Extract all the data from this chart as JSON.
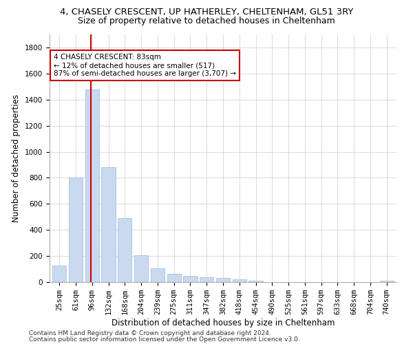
{
  "title_line1": "4, CHASELY CRESCENT, UP HATHERLEY, CHELTENHAM, GL51 3RY",
  "title_line2": "Size of property relative to detached houses in Cheltenham",
  "xlabel": "Distribution of detached houses by size in Cheltenham",
  "ylabel": "Number of detached properties",
  "bar_color": "#c9d9f0",
  "bar_edgecolor": "#a0b8d8",
  "categories": [
    "25sqm",
    "61sqm",
    "96sqm",
    "132sqm",
    "168sqm",
    "204sqm",
    "239sqm",
    "275sqm",
    "311sqm",
    "347sqm",
    "382sqm",
    "418sqm",
    "454sqm",
    "490sqm",
    "525sqm",
    "561sqm",
    "597sqm",
    "633sqm",
    "668sqm",
    "704sqm",
    "740sqm"
  ],
  "values": [
    125,
    800,
    1480,
    880,
    490,
    205,
    105,
    65,
    50,
    35,
    30,
    20,
    10,
    0,
    0,
    0,
    0,
    0,
    0,
    0,
    10
  ],
  "ylim": [
    0,
    1900
  ],
  "yticks": [
    0,
    200,
    400,
    600,
    800,
    1000,
    1200,
    1400,
    1600,
    1800
  ],
  "vline_x_index": 1.925,
  "annotation_text": "4 CHASELY CRESCENT: 83sqm\n← 12% of detached houses are smaller (517)\n87% of semi-detached houses are larger (3,707) →",
  "annotation_box_color": "#ffffff",
  "annotation_box_edgecolor": "#cc0000",
  "vline_color": "#cc0000",
  "footer_line1": "Contains HM Land Registry data © Crown copyright and database right 2024.",
  "footer_line2": "Contains public sector information licensed under the Open Government Licence v3.0.",
  "background_color": "#ffffff",
  "grid_color": "#cccccc",
  "title_fontsize": 9.5,
  "subtitle_fontsize": 9,
  "tick_fontsize": 7.5,
  "label_fontsize": 8.5,
  "annotation_fontsize": 7.5,
  "footer_fontsize": 6.5
}
